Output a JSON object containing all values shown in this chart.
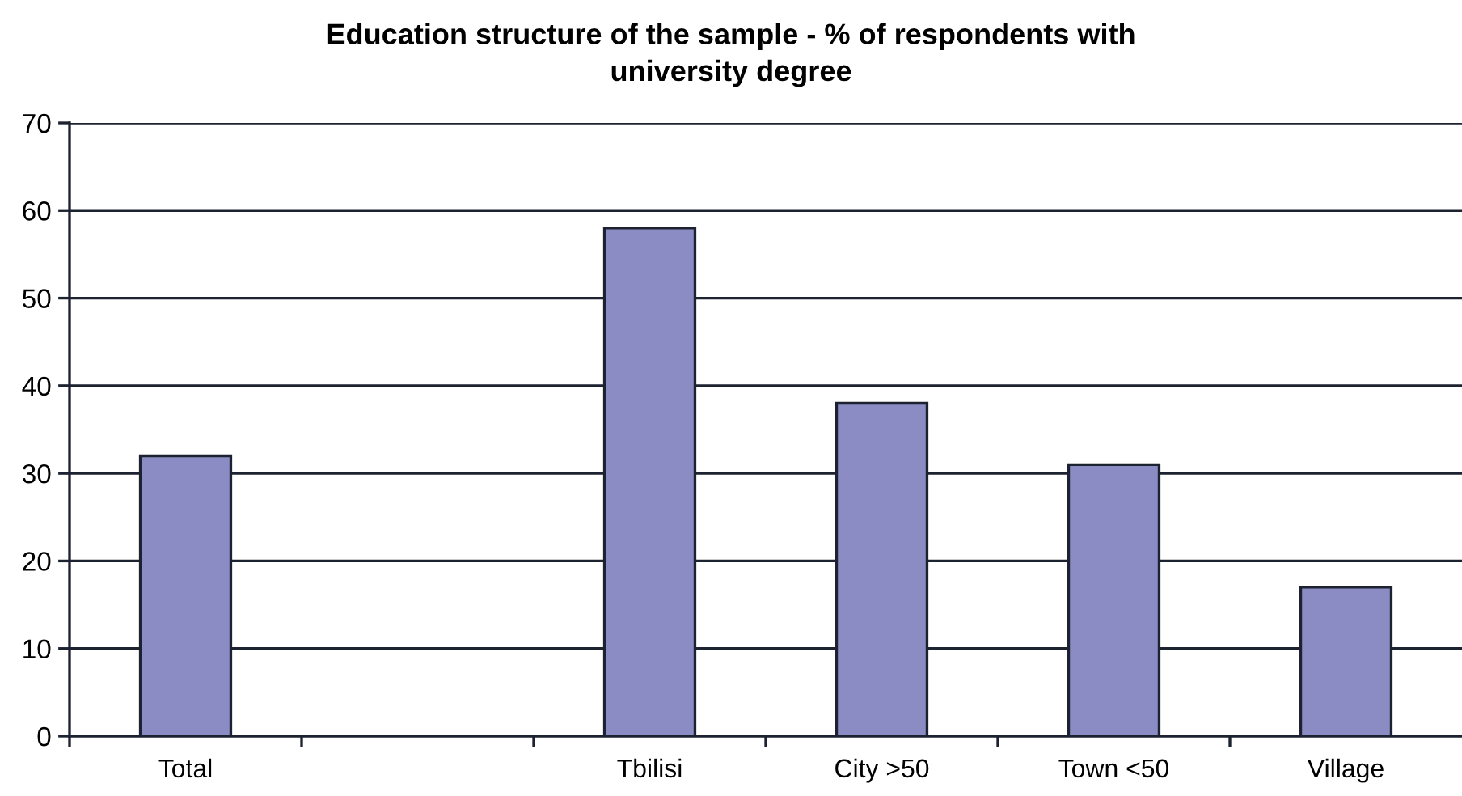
{
  "chart_data": {
    "type": "bar",
    "title": "Education structure of the sample - % of respondents with\nuniversity degree",
    "categories": [
      "Total",
      null,
      "Tbilisi",
      "City >50",
      "Town <50",
      "Village"
    ],
    "values": [
      32,
      null,
      58,
      38,
      31,
      17
    ],
    "color": "#8c8cc4",
    "ylim": [
      0,
      70
    ],
    "yticks": [
      0,
      10,
      20,
      30,
      40,
      50,
      60,
      70
    ],
    "grid": "y"
  }
}
